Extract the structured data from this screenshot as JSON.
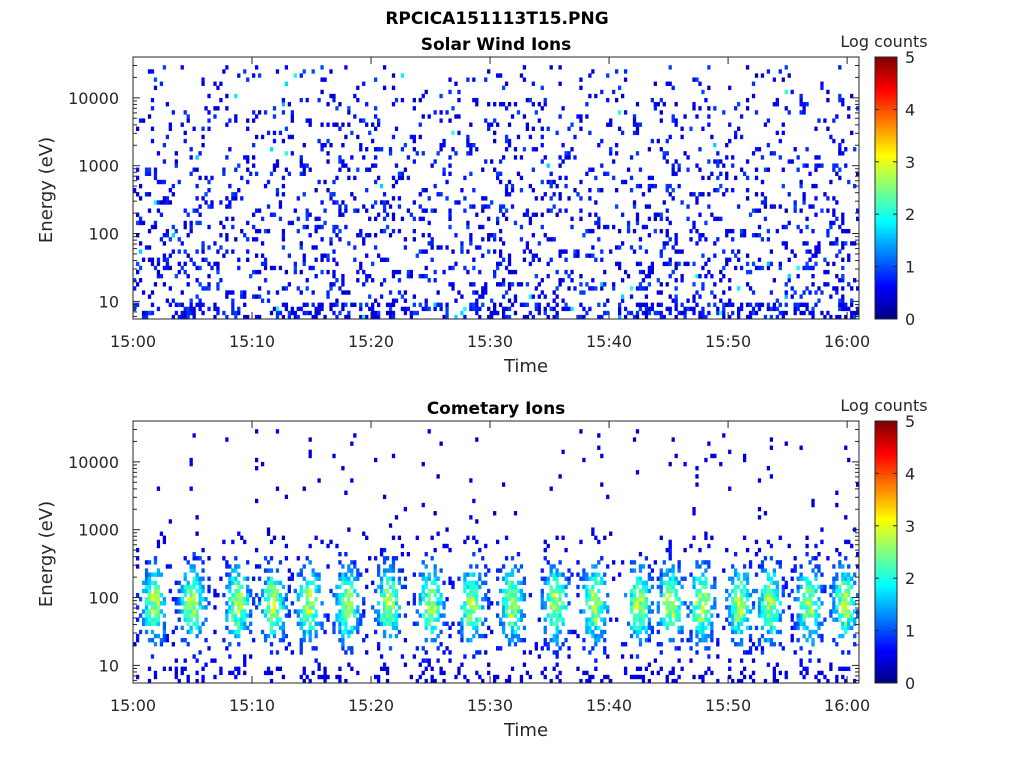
{
  "figure": {
    "title": "RPCICA151113T15.PNG"
  },
  "colors": {
    "colormap": "jet",
    "lowest_bin": "#00008f",
    "highest_bin": "#800000"
  },
  "chart_data": [
    {
      "type": "heatmap",
      "title": "Solar Wind Ions",
      "xlabel": "Time",
      "ylabel": "Energy (eV)",
      "x_ticks": [
        "15:00",
        "15:10",
        "15:20",
        "15:30",
        "15:40",
        "15:50",
        "16:00"
      ],
      "x_range": [
        "15:00",
        "16:01"
      ],
      "y_scale": "log",
      "y_ticks": [
        "10",
        "100",
        "1000",
        "10000"
      ],
      "y_range": [
        5.5,
        40000
      ],
      "colorbar": {
        "label": "Log counts",
        "ticks": [
          "0",
          "1",
          "2",
          "3",
          "4",
          "5"
        ],
        "range": [
          0,
          5
        ]
      },
      "description_level": "sparse low counts (log 0-1) across all energies, slightly denser below 300 eV",
      "peak_log_counts": 2
    },
    {
      "type": "heatmap",
      "title": "Cometary Ions",
      "xlabel": "Time",
      "ylabel": "Energy (eV)",
      "x_ticks": [
        "15:00",
        "15:10",
        "15:20",
        "15:30",
        "15:40",
        "15:50",
        "16:00"
      ],
      "x_range": [
        "15:00",
        "16:01"
      ],
      "y_scale": "log",
      "y_ticks": [
        "10",
        "100",
        "1000",
        "10000"
      ],
      "y_range": [
        5.5,
        40000
      ],
      "colorbar": {
        "label": "Log counts",
        "ticks": [
          "0",
          "1",
          "2",
          "3",
          "4",
          "5"
        ],
        "range": [
          0,
          5
        ]
      },
      "bursts_minutes": [
        1.8,
        5.0,
        8.8,
        11.8,
        14.8,
        18.0,
        21.5,
        25.0,
        28.5,
        31.8,
        35.5,
        38.8,
        42.5,
        45.2,
        47.8,
        51.0,
        53.5,
        56.8,
        59.8
      ],
      "burst_energy_range": [
        20,
        600
      ],
      "burst_peak_energy": 80,
      "peak_log_counts": 3
    }
  ]
}
